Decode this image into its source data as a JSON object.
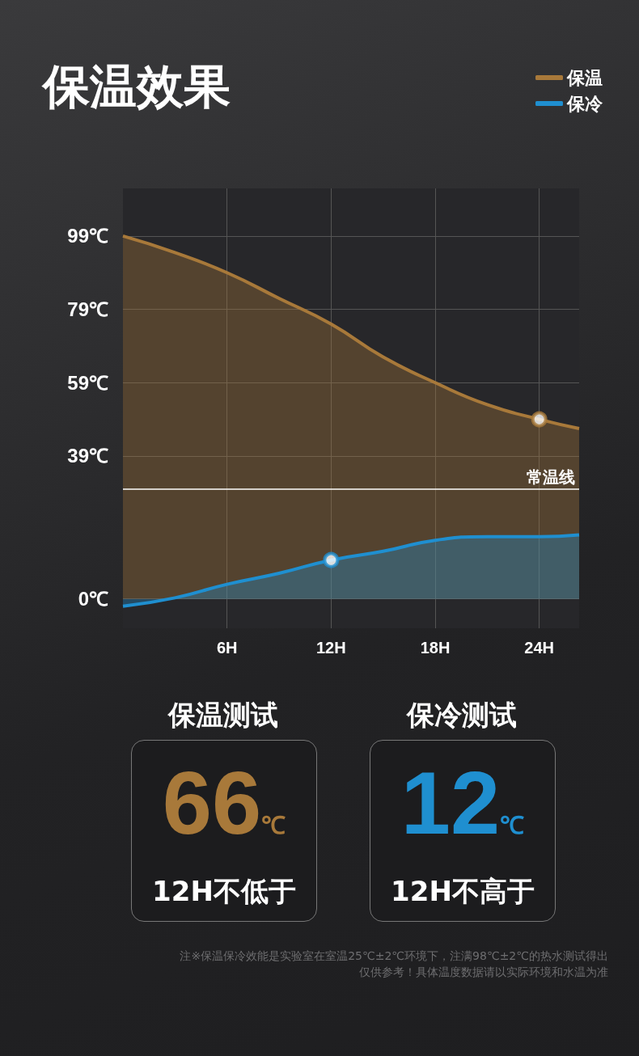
{
  "chart_data": {
    "type": "area",
    "title": "保温效果",
    "x": [
      0,
      3,
      6,
      9,
      12,
      15,
      18,
      21,
      24,
      26.3
    ],
    "series": [
      {
        "name": "保温",
        "color": "#a8793a",
        "values": [
          99,
          94.5,
          89,
          82,
          75,
          66,
          59,
          53,
          49,
          46.5
        ]
      },
      {
        "name": "保冷",
        "color": "#1f8fd0",
        "values": [
          -2,
          0.3,
          4,
          7,
          10.6,
          13,
          16,
          17,
          17,
          17.5
        ]
      },
      {
        "type": "scatter",
        "color": "#a8793a",
        "x": [
          24
        ],
        "values": [
          49
        ]
      },
      {
        "type": "scatter",
        "color": "#1f8fd0",
        "x": [
          12
        ],
        "values": [
          10.6
        ]
      }
    ],
    "xlim": [
      0,
      26.3
    ],
    "xticks": [
      {
        "value": 6,
        "label": "6H"
      },
      {
        "value": 12,
        "label": "12H"
      },
      {
        "value": 18,
        "label": "18H"
      },
      {
        "value": 24,
        "label": "24H"
      }
    ],
    "ylim": [
      -8,
      112
    ],
    "yticks": [
      {
        "value": 0,
        "label": "0℃"
      },
      {
        "value": 39,
        "label": "39℃"
      },
      {
        "value": 59,
        "label": "59℃"
      },
      {
        "value": 79,
        "label": "79℃"
      },
      {
        "value": 99,
        "label": "99℃"
      }
    ],
    "ref_lines": [
      {
        "axis": "y",
        "value": 30,
        "label": "常温线",
        "color": "#ffffff"
      }
    ],
    "grid": true,
    "legend": "top right",
    "annotations": [
      "保温测试",
      "66℃",
      "12H不低于",
      "保冷测试",
      "12℃",
      "12H不高于",
      "注※保温保冷效能是实验室在室温25℃±2℃环境下，注满98℃±2℃的热水测试得出",
      "仅供参考！具体温度数据请以实际环境和水温为准"
    ]
  }
}
